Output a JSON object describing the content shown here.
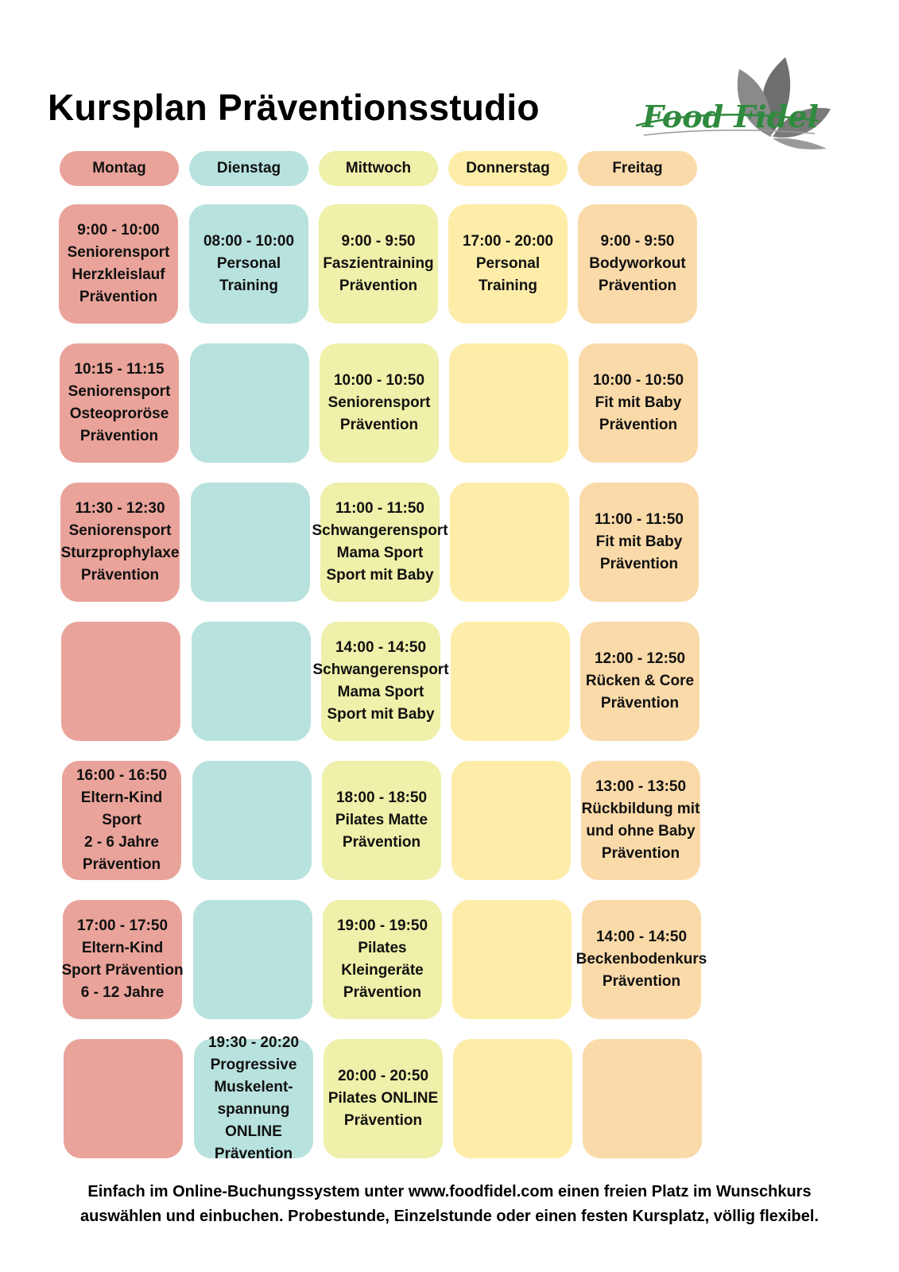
{
  "title": "Kursplan Präventionsstudio",
  "logo": {
    "text": "Food Fidel",
    "icon": "leaf-icon"
  },
  "colors": {
    "montag": "#e9a39a",
    "dienstag": "#b8e2dd",
    "mittwoch": "#eff0a9",
    "donnerstag": "#fdeda9",
    "freitag": "#fadaa9"
  },
  "days": [
    "Montag",
    "Dienstag",
    "Mittwoch",
    "Donnerstag",
    "Freitag"
  ],
  "schedule": {
    "montag": [
      [
        "9:00 - 10:00",
        "Seniorensport",
        "Herzkleislauf",
        "Prävention"
      ],
      [
        "10:15 - 11:15",
        "Seniorensport",
        "Osteoproröse",
        "Prävention"
      ],
      [
        "11:30 - 12:30",
        "Seniorensport",
        "Sturzprophylaxe",
        "Prävention"
      ],
      [],
      [
        "16:00 - 16:50",
        "Eltern-Kind",
        "Sport",
        "2 - 6 Jahre",
        "Prävention"
      ],
      [
        "17:00 - 17:50",
        "Eltern-Kind",
        "Sport Prävention",
        "6 - 12 Jahre"
      ],
      []
    ],
    "dienstag": [
      [
        "08:00 - 10:00",
        "Personal",
        "Training"
      ],
      [],
      [],
      [],
      [],
      [],
      [
        "19:30 - 20:20",
        "Progressive",
        "Muskelent-",
        "spannung",
        "ONLINE",
        "Prävention"
      ]
    ],
    "mittwoch": [
      [
        "9:00 - 9:50",
        "Faszientraining",
        "Prävention"
      ],
      [
        "10:00 - 10:50",
        "Seniorensport",
        "Prävention"
      ],
      [
        "11:00 - 11:50",
        "Schwangerensport",
        "Mama Sport",
        "Sport mit Baby"
      ],
      [
        "14:00 - 14:50",
        "Schwangerensport",
        "Mama Sport",
        "Sport mit Baby"
      ],
      [
        "18:00 - 18:50",
        "Pilates Matte",
        "Prävention"
      ],
      [
        "19:00 - 19:50",
        "Pilates",
        "Kleingeräte",
        "Prävention"
      ],
      [
        "20:00 - 20:50",
        "Pilates ONLINE",
        "Prävention"
      ]
    ],
    "donnerstag": [
      [
        "17:00 - 20:00",
        "Personal",
        "Training"
      ],
      [],
      [],
      [],
      [],
      [],
      []
    ],
    "freitag": [
      [
        "9:00 - 9:50",
        "Bodyworkout",
        "Prävention"
      ],
      [
        "10:00 - 10:50",
        "Fit mit Baby",
        "Prävention"
      ],
      [
        "11:00 - 11:50",
        "Fit mit Baby",
        "Prävention"
      ],
      [
        "12:00 - 12:50",
        "Rücken & Core",
        "Prävention"
      ],
      [
        "13:00 - 13:50",
        "Rückbildung mit",
        "und ohne Baby",
        "Prävention"
      ],
      [
        "14:00 - 14:50",
        "Beckenbodenkurs",
        "Prävention"
      ],
      []
    ]
  },
  "footer": {
    "line1": "Einfach im Online-Buchungssystem unter www.foodfidel.com einen freien Platz im Wunschkurs",
    "line2": "auswählen und einbuchen. Probestunde, Einzelstunde oder einen festen Kursplatz, völlig flexibel."
  }
}
